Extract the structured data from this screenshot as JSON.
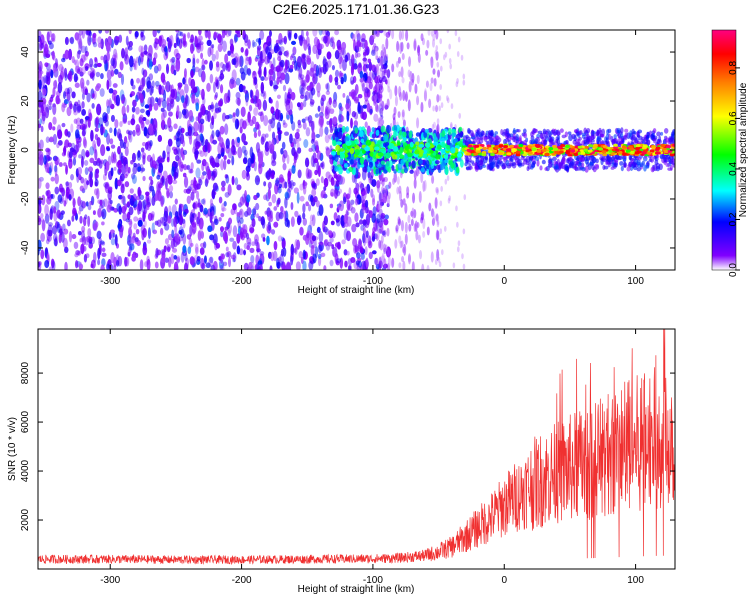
{
  "figure_title": "C2E6.2025.171.01.36.G23",
  "chart_data": [
    {
      "type": "heatmap",
      "panel": "spectrogram",
      "xlabel": "Height of straight line (km)",
      "ylabel": "Frequency (Hz)",
      "xlim": [
        -355,
        130
      ],
      "ylim": [
        -49,
        49
      ],
      "xticks": [
        -300,
        -200,
        -100,
        0,
        100
      ],
      "yticks": [
        -40,
        -20,
        0,
        20,
        40
      ],
      "colorbar": {
        "label": "Normalized spectral amplitude",
        "range": [
          0,
          0.95
        ],
        "ticks": [
          0.0,
          0.2,
          0.4,
          0.6,
          0.8
        ],
        "colormap": [
          "#ffffff",
          "#8000ff",
          "#0000ff",
          "#00ffff",
          "#00ff00",
          "#ffff00",
          "#ff8000",
          "#ff0000",
          "#ff0080"
        ]
      },
      "regions": [
        {
          "x": [
            -355,
            -85
          ],
          "freq_hz": [
            -49,
            49
          ],
          "amplitude": [
            0.05,
            0.2
          ],
          "description": "broadband noise"
        },
        {
          "x": [
            -130,
            -30
          ],
          "freq_hz": [
            -10,
            10
          ],
          "amplitude": [
            0.2,
            0.45
          ],
          "description": "signal emerging"
        },
        {
          "x": [
            -30,
            130
          ],
          "freq_hz": [
            -3,
            3
          ],
          "amplitude": [
            0.6,
            0.95
          ],
          "description": "narrow line near 0 Hz"
        }
      ]
    },
    {
      "type": "line",
      "panel": "snr",
      "xlabel": "Height of straight line (km)",
      "ylabel": "SNR (10 * v/v)",
      "xlim": [
        -355,
        130
      ],
      "ylim": [
        0,
        9800
      ],
      "xticks": [
        -300,
        -200,
        -100,
        0,
        100
      ],
      "yticks": [
        2000,
        4000,
        6000,
        8000
      ],
      "color": "#f03030",
      "series": [
        {
          "x": [
            -355,
            -300,
            -250,
            -200,
            -150,
            -100,
            -80,
            -60,
            -50,
            -40,
            -30,
            -20,
            -10,
            0,
            10,
            20,
            30,
            40,
            50,
            60,
            70,
            80,
            90,
            100,
            110,
            120,
            130
          ],
          "values": [
            400,
            400,
            380,
            380,
            400,
            420,
            450,
            550,
            700,
            900,
            1300,
            1700,
            2100,
            2600,
            3000,
            3400,
            3700,
            3900,
            4100,
            4300,
            4500,
            4700,
            4900,
            5100,
            5300,
            5400,
            5500
          ]
        }
      ]
    }
  ]
}
